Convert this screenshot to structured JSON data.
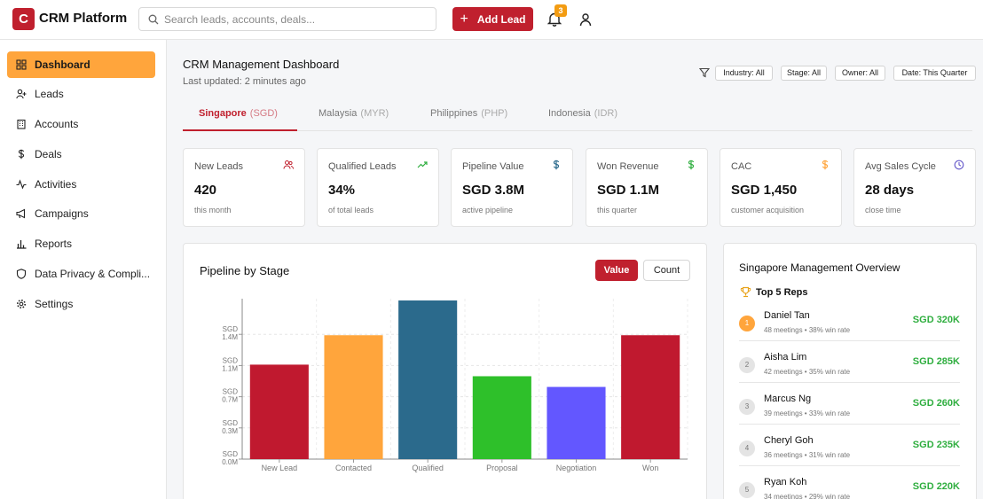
{
  "app": {
    "logo_letter": "C",
    "title": "CRM Platform"
  },
  "search": {
    "placeholder": "Search leads, accounts, deals..."
  },
  "header": {
    "add_lead_label": "Add Lead",
    "notification_count": "3"
  },
  "sidebar": {
    "items": [
      {
        "label": "Dashboard",
        "icon": "grid-icon",
        "active": true
      },
      {
        "label": "Leads",
        "icon": "user-plus-icon"
      },
      {
        "label": "Accounts",
        "icon": "building-icon"
      },
      {
        "label": "Deals",
        "icon": "dollar-icon"
      },
      {
        "label": "Activities",
        "icon": "activity-icon"
      },
      {
        "label": "Campaigns",
        "icon": "megaphone-icon"
      },
      {
        "label": "Reports",
        "icon": "bar-chart-icon"
      },
      {
        "label": "Data Privacy & Compli...",
        "icon": "shield-icon"
      },
      {
        "label": "Settings",
        "icon": "gear-icon"
      }
    ]
  },
  "dashboard": {
    "title": "CRM Management Dashboard",
    "updated": "Last updated: 2 minutes ago",
    "filters": [
      "Industry: All",
      "Stage: All",
      "Owner: All",
      "Date: This Quarter"
    ]
  },
  "tabs": [
    {
      "label": "Singapore",
      "currency": "(SGD)",
      "active": true
    },
    {
      "label": "Malaysia",
      "currency": "(MYR)"
    },
    {
      "label": "Philippines",
      "currency": "(PHP)"
    },
    {
      "label": "Indonesia",
      "currency": "(IDR)"
    }
  ],
  "kpis": [
    {
      "label": "New Leads",
      "value": "420",
      "sub": "this month",
      "icon": "users-icon",
      "color": "#c0202e"
    },
    {
      "label": "Qualified Leads",
      "value": "34%",
      "sub": "of total leads",
      "icon": "trend-up-icon",
      "color": "#2fae3f"
    },
    {
      "label": "Pipeline Value",
      "value": "SGD 3.8M",
      "sub": "active pipeline",
      "icon": "dollar-icon",
      "color": "#2b6a8c"
    },
    {
      "label": "Won Revenue",
      "value": "SGD 1.1M",
      "sub": "this quarter",
      "icon": "dollar-icon",
      "color": "#2fae3f"
    },
    {
      "label": "CAC",
      "value": "SGD 1,450",
      "sub": "customer acquisition",
      "icon": "dollar-icon",
      "color": "#ffa53c"
    },
    {
      "label": "Avg Sales Cycle",
      "value": "28 days",
      "sub": "close time",
      "icon": "clock-icon",
      "color": "#6357c9"
    }
  ],
  "pipeline": {
    "title": "Pipeline by Stage",
    "toggle": {
      "value_label": "Value",
      "count_label": "Count"
    }
  },
  "chart_data": {
    "type": "bar",
    "title": "Pipeline by Stage",
    "categories": [
      "New Lead",
      "Contacted",
      "Qualified",
      "Proposal",
      "Negotiation",
      "Won"
    ],
    "values": [
      1.06,
      1.39,
      1.78,
      0.93,
      0.81,
      1.39
    ],
    "colors": [
      "#c0192f",
      "#ffa53c",
      "#2b6a8c",
      "#2ec02a",
      "#6357ff",
      "#c0192f"
    ],
    "ylim": [
      0,
      1.8
    ],
    "yticks": [
      {
        "value": 0,
        "label_top": "SGD",
        "label_bottom": "0.0M"
      },
      {
        "value": 0.35,
        "label_top": "SGD",
        "label_bottom": "0.3M"
      },
      {
        "value": 0.7,
        "label_top": "SGD",
        "label_bottom": "0.7M"
      },
      {
        "value": 1.05,
        "label_top": "SGD",
        "label_bottom": "1.1M"
      },
      {
        "value": 1.4,
        "label_top": "SGD",
        "label_bottom": "1.4M"
      }
    ],
    "grid": true,
    "xlabel": "",
    "ylabel": ""
  },
  "overview": {
    "title": "Singapore Management Overview",
    "top_reps_label": "Top 5 Reps",
    "reps": [
      {
        "rank": "1",
        "name": "Daniel Tan",
        "meta": "48 meetings • 38% win rate",
        "amount": "SGD 320K"
      },
      {
        "rank": "2",
        "name": "Aisha Lim",
        "meta": "42 meetings • 35% win rate",
        "amount": "SGD 285K"
      },
      {
        "rank": "3",
        "name": "Marcus Ng",
        "meta": "39 meetings • 33% win rate",
        "amount": "SGD 260K"
      },
      {
        "rank": "4",
        "name": "Cheryl Goh",
        "meta": "36 meetings • 31% win rate",
        "amount": "SGD 235K"
      },
      {
        "rank": "5",
        "name": "Ryan Koh",
        "meta": "34 meetings • 29% win rate",
        "amount": "SGD 220K"
      }
    ]
  }
}
